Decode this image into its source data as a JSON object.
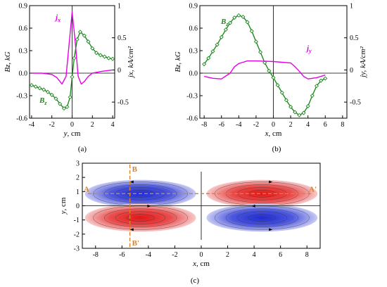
{
  "chart_data": [
    {
      "type": "line",
      "panel": "(a)",
      "xlabel": "y, cm",
      "ylabel_left": "Bz, kG",
      "ylabel_right": "jx, kA/cm²",
      "xlim": [
        -4.2,
        4.2
      ],
      "ylim_left": [
        -0.6,
        0.9
      ],
      "ylim_right": [
        -0.75,
        1.0
      ],
      "x_ticks": [
        -4,
        -2,
        0,
        2,
        4
      ],
      "y_ticks_left": [
        -0.6,
        -0.3,
        0.0,
        0.3,
        0.6,
        0.9
      ],
      "y_ticks_right": [
        -0.5,
        0.0,
        0.5,
        1.0
      ],
      "series": [
        {
          "name": "Bz",
          "axis": "left",
          "color": "#1f8a1f",
          "markers": "diamond",
          "x": [
            -4.0,
            -3.6,
            -3.2,
            -2.8,
            -2.4,
            -2.0,
            -1.6,
            -1.2,
            -0.8,
            -0.5,
            -0.2,
            0.0,
            0.2,
            0.5,
            0.8,
            1.2,
            1.6,
            2.0,
            2.4,
            2.8,
            3.2,
            3.6,
            4.0
          ],
          "y": [
            -0.16,
            -0.18,
            -0.2,
            -0.22,
            -0.25,
            -0.29,
            -0.34,
            -0.41,
            -0.47,
            -0.45,
            -0.32,
            -0.05,
            0.2,
            0.45,
            0.55,
            0.5,
            0.42,
            0.33,
            0.27,
            0.24,
            0.22,
            0.2,
            0.19
          ]
        },
        {
          "name": "jx",
          "axis": "right",
          "color": "#e600e6",
          "x": [
            -4.0,
            -3.0,
            -2.0,
            -1.5,
            -1.0,
            -0.6,
            -0.3,
            0.0,
            0.3,
            0.6,
            0.9,
            1.2,
            1.6,
            2.0,
            3.0,
            4.0
          ],
          "y": [
            -0.05,
            -0.05,
            -0.07,
            -0.12,
            -0.22,
            -0.1,
            0.4,
            0.9,
            0.45,
            -0.1,
            -0.22,
            -0.18,
            -0.1,
            -0.05,
            -0.02,
            0.0
          ]
        }
      ],
      "series_labels": [
        "jx",
        "Bz"
      ]
    },
    {
      "type": "line",
      "panel": "(b)",
      "xlabel": "x, cm",
      "ylabel_left": "Bz, kG",
      "ylabel_right": "jy, kA/cm²",
      "xlim": [
        -8.5,
        8.5
      ],
      "ylim_left": [
        -0.6,
        0.9
      ],
      "ylim_right": [
        -0.75,
        1.0
      ],
      "x_ticks": [
        -8,
        -6,
        -4,
        -2,
        0,
        2,
        4,
        6,
        8
      ],
      "y_ticks_left": [
        -0.6,
        -0.3,
        0.0,
        0.3,
        0.6,
        0.9
      ],
      "y_ticks_right": [
        -0.5,
        0.0,
        0.5,
        1.0
      ],
      "series": [
        {
          "name": "Bz",
          "axis": "left",
          "color": "#1f8a1f",
          "markers": "diamond",
          "x": [
            -8.0,
            -7.5,
            -7.0,
            -6.5,
            -6.0,
            -5.5,
            -5.0,
            -4.5,
            -4.0,
            -3.5,
            -3.0,
            -2.5,
            -2.0,
            -1.5,
            -1.0,
            -0.5,
            0.0,
            0.5,
            1.0,
            1.5,
            2.0,
            2.5,
            3.0,
            3.5,
            4.0,
            4.5,
            5.0,
            5.5,
            6.0
          ],
          "y": [
            0.12,
            0.2,
            0.29,
            0.38,
            0.48,
            0.58,
            0.67,
            0.74,
            0.77,
            0.75,
            0.68,
            0.56,
            0.42,
            0.28,
            0.14,
            0.03,
            -0.06,
            -0.16,
            -0.26,
            -0.36,
            -0.45,
            -0.52,
            -0.56,
            -0.53,
            -0.44,
            -0.3,
            -0.17,
            -0.1,
            -0.07
          ]
        },
        {
          "name": "jy",
          "axis": "right",
          "color": "#e600e6",
          "x": [
            -8.0,
            -7.0,
            -6.0,
            -5.0,
            -4.5,
            -4.0,
            -3.5,
            -3.0,
            -2.0,
            0.0,
            1.0,
            2.0,
            2.5,
            3.0,
            3.5,
            4.0,
            5.0,
            6.0
          ],
          "y": [
            -0.1,
            -0.13,
            -0.14,
            -0.05,
            0.05,
            0.1,
            0.12,
            0.14,
            0.14,
            0.13,
            0.12,
            0.11,
            0.05,
            -0.02,
            -0.1,
            -0.14,
            -0.12,
            -0.08
          ]
        }
      ],
      "series_labels": [
        "Bz",
        "jy"
      ]
    },
    {
      "type": "heatmap",
      "panel": "(c)",
      "xlabel": "x, cm",
      "ylabel": "y, cm",
      "xlim": [
        -9,
        9
      ],
      "ylim": [
        -3,
        3
      ],
      "x_ticks": [
        -8,
        -6,
        -4,
        -2,
        0,
        2,
        4,
        6,
        8
      ],
      "y_ticks": [
        -3,
        -2,
        -1,
        0,
        1,
        2,
        3
      ],
      "lobes": [
        {
          "x0": -4.6,
          "y0": 0.85,
          "sign": "negative",
          "color": "#2a36d6",
          "rx": 4.2,
          "ry": 0.85,
          "flow": "counterclockwise"
        },
        {
          "x0": 4.6,
          "y0": 0.85,
          "sign": "positive",
          "color": "#e42020",
          "rx": 4.2,
          "ry": 0.85,
          "flow": "clockwise"
        },
        {
          "x0": -4.6,
          "y0": -0.85,
          "sign": "positive",
          "color": "#e42020",
          "rx": 4.2,
          "ry": 0.85,
          "flow": "clockwise"
        },
        {
          "x0": 4.6,
          "y0": -0.85,
          "sign": "negative",
          "color": "#2a36d6",
          "rx": 4.2,
          "ry": 0.85,
          "flow": "counterclockwise"
        }
      ],
      "cut_lines": [
        {
          "from_label": "A",
          "to_label": "A'",
          "orientation": "horizontal",
          "y": 0.85
        },
        {
          "from_label": "B",
          "to_label": "B'",
          "orientation": "vertical",
          "x": -5.4
        }
      ],
      "cut_color": "#d9822b"
    }
  ],
  "panel_labels": [
    "(a)",
    "(b)",
    "(c)"
  ]
}
